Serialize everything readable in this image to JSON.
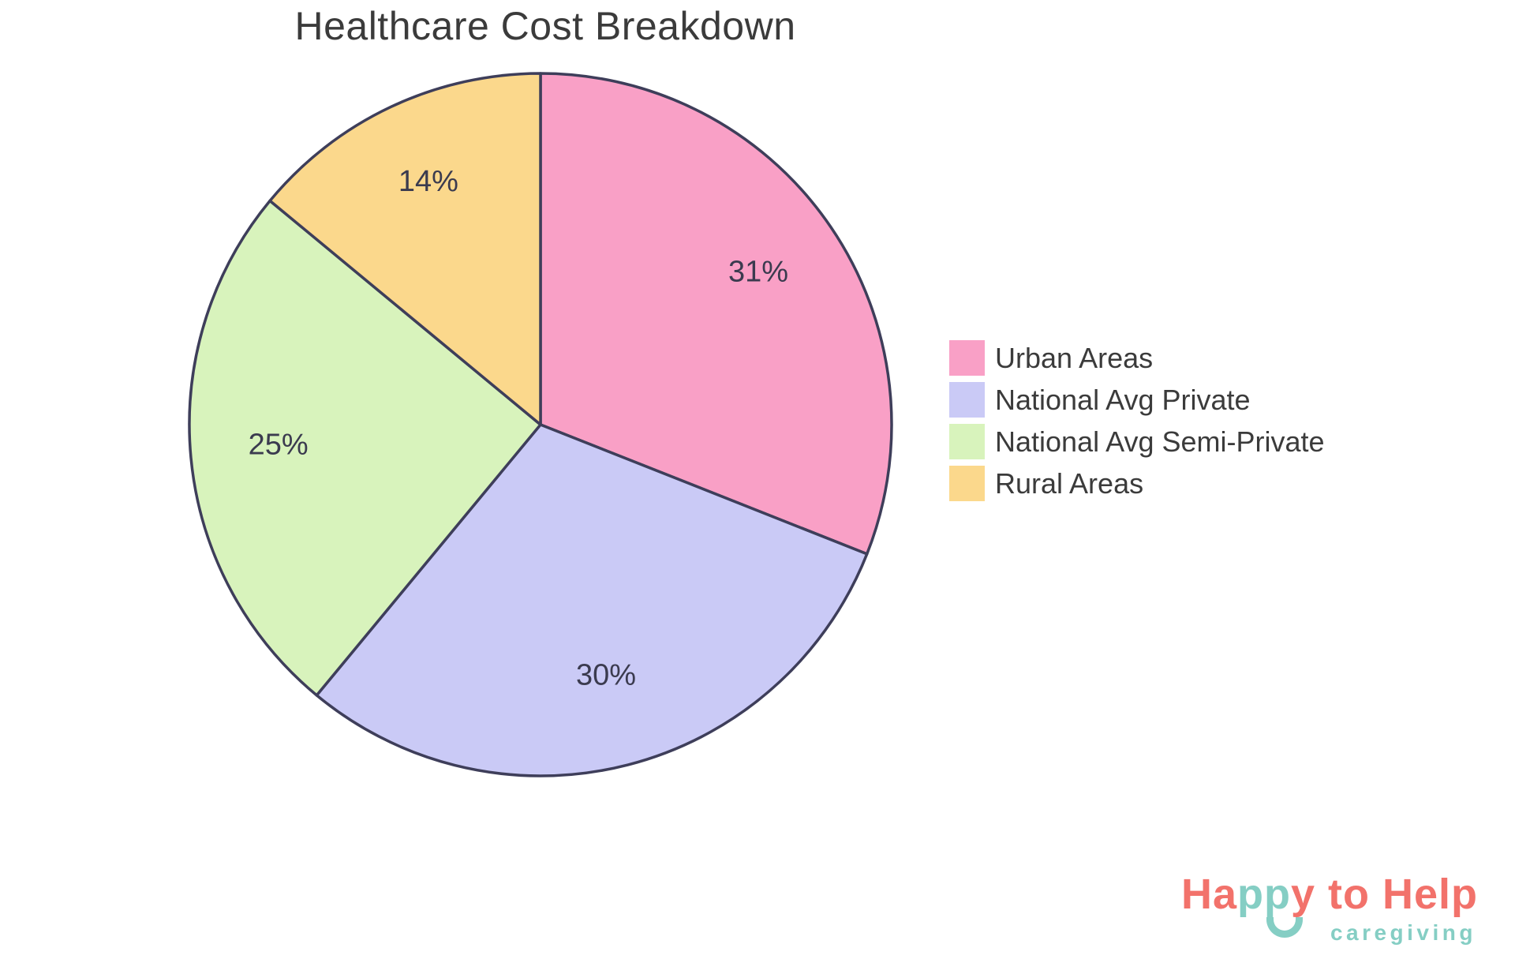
{
  "chart_data": {
    "type": "pie",
    "title": "Healthcare Cost Breakdown",
    "direction": "clockwise",
    "start_angle": "12-oclock",
    "legend_position": "center-right",
    "grid": false,
    "stroke_color": "#3E3E5A",
    "label_color": "#3B3B4F",
    "slices": [
      {
        "label": "Urban Areas",
        "value": 31,
        "display": "31%",
        "color": "#F9A0C6"
      },
      {
        "label": "National Avg Private",
        "value": 30,
        "display": "30%",
        "color": "#CACAF6"
      },
      {
        "label": "National Avg Semi-Private",
        "value": 25,
        "display": "25%",
        "color": "#D8F3BC"
      },
      {
        "label": "Rural Areas",
        "value": 14,
        "display": "14%",
        "color": "#FBD88C"
      }
    ]
  },
  "logo": {
    "parts": [
      {
        "text": "Ha",
        "color": "#F2726B"
      },
      {
        "text": "pp",
        "color": "#85CEC4"
      },
      {
        "text": "y to Help",
        "color": "#F2726B"
      }
    ],
    "subtitle": "caregiving",
    "colors": {
      "coral": "#F2726B",
      "teal": "#85CEC4"
    }
  }
}
